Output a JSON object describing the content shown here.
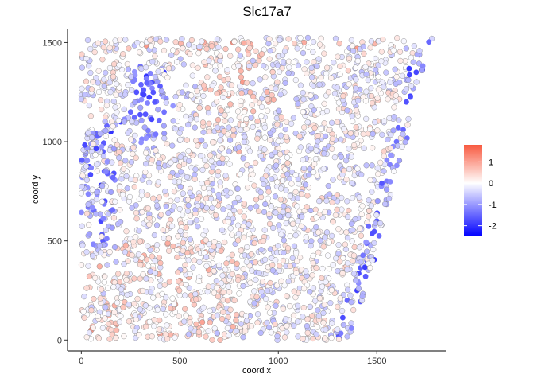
{
  "chart_data": {
    "type": "scatter",
    "title": "Slc17a7",
    "xlabel": "coord x",
    "ylabel": "coord y",
    "xlim": [
      -70,
      1850
    ],
    "ylim": [
      -55,
      1570
    ],
    "xticks": [
      0,
      500,
      1000,
      1500
    ],
    "yticks": [
      0,
      500,
      1000,
      1500
    ],
    "grid": false,
    "legend": {
      "placement": "right",
      "kind": "colorbar",
      "min": -2.5,
      "max": 1.8,
      "ticks": [
        1,
        0,
        -1,
        -2
      ],
      "tick_labels": [
        "1",
        "0",
        "-1",
        "-2"
      ],
      "colors": {
        "low": "#0000ff",
        "mid": "#ffffff",
        "high": "#f8593f"
      }
    },
    "point_style": {
      "outline": "#7a7a7a"
    },
    "series": [
      {
        "point_count": 2600,
        "x_range": [
          0,
          1780
        ],
        "y_range": [
          0,
          1525
        ],
        "points": [
          [
            103,
            1490,
            -0.3
          ],
          [
            160,
            1480,
            0.9
          ],
          [
            240,
            1470,
            0.6
          ],
          [
            330,
            1485,
            1.1
          ],
          [
            420,
            1460,
            0.2
          ],
          [
            505,
            1495,
            0.8
          ],
          [
            600,
            1470,
            1.0
          ],
          [
            680,
            1490,
            0.5
          ],
          [
            770,
            1500,
            1.2
          ],
          [
            860,
            1480,
            0.7
          ],
          [
            950,
            1495,
            -0.6
          ],
          [
            1040,
            1470,
            0.4
          ],
          [
            1130,
            1500,
            0.9
          ],
          [
            1220,
            1480,
            -0.2
          ],
          [
            1310,
            1495,
            0.6
          ],
          [
            1400,
            1470,
            1.1
          ],
          [
            1490,
            1495,
            0.8
          ],
          [
            1580,
            1480,
            0.3
          ],
          [
            1650,
            1470,
            -0.7
          ],
          [
            1780,
            1520,
            -0.4
          ],
          [
            330,
            1330,
            -2.0
          ],
          [
            360,
            1300,
            -1.8
          ],
          [
            400,
            1280,
            -1.6
          ],
          [
            420,
            1350,
            -1.9
          ],
          [
            300,
            1380,
            -1.4
          ],
          [
            280,
            1250,
            -1.7
          ],
          [
            250,
            1150,
            -1.5
          ],
          [
            200,
            1100,
            -1.8
          ],
          [
            150,
            1050,
            -2.0
          ],
          [
            110,
            950,
            -1.6
          ],
          [
            130,
            850,
            -1.9
          ],
          [
            100,
            780,
            -2.1
          ],
          [
            120,
            700,
            -1.7
          ],
          [
            150,
            650,
            -1.4
          ],
          [
            100,
            600,
            -1.8
          ],
          [
            110,
            500,
            -1.6
          ],
          [
            820,
            1300,
            1.1
          ],
          [
            700,
            1250,
            0.9
          ],
          [
            950,
            1200,
            0.7
          ],
          [
            1100,
            1180,
            0.3
          ],
          [
            600,
            1000,
            1.0
          ],
          [
            800,
            950,
            0.8
          ],
          [
            1000,
            900,
            -0.3
          ],
          [
            1200,
            950,
            -0.5
          ],
          [
            700,
            700,
            0.6
          ],
          [
            900,
            650,
            0.4
          ],
          [
            1100,
            600,
            -0.2
          ],
          [
            1300,
            700,
            -0.4
          ],
          [
            300,
            400,
            0.8
          ],
          [
            500,
            300,
            1.1
          ],
          [
            700,
            250,
            0.5
          ],
          [
            900,
            200,
            0.3
          ],
          [
            1200,
            150,
            -0.6
          ],
          [
            1350,
            200,
            -1.5
          ],
          [
            1400,
            250,
            -1.9
          ],
          [
            1450,
            400,
            -1.6
          ],
          [
            1600,
            1000,
            -1.4
          ],
          [
            1650,
            1200,
            -1.7
          ],
          [
            1700,
            1350,
            -1.8
          ],
          [
            1550,
            800,
            -1.3
          ],
          [
            1500,
            600,
            -1.6
          ],
          [
            50,
            50,
            1.2
          ],
          [
            180,
            80,
            1.0
          ],
          [
            400,
            30,
            0.9
          ],
          [
            600,
            60,
            0.7
          ],
          [
            800,
            40,
            0.2
          ],
          [
            1000,
            30,
            0.4
          ],
          [
            1250,
            60,
            -0.5
          ]
        ]
      }
    ]
  }
}
